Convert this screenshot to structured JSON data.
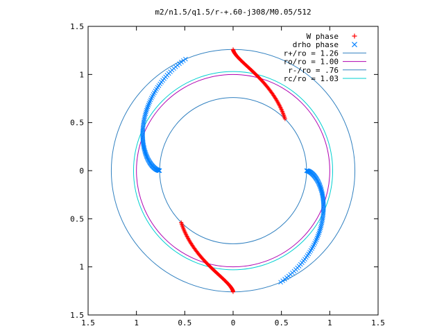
{
  "chart_data": {
    "type": "scatter",
    "title": "m2/n1.5/q1.5/r-+.60-j308/M0.05/512",
    "xlabel": "",
    "ylabel": "",
    "xlim": [
      -1.5,
      1.5
    ],
    "ylim": [
      -1.5,
      1.5
    ],
    "x_ticks": [
      "1.5",
      "1",
      "0.5",
      "0",
      "0.5",
      "1",
      "1.5"
    ],
    "y_ticks": [
      "1.5",
      "1",
      "0.5",
      "0",
      "0.5",
      "1",
      "1.5"
    ],
    "x_tick_values": [
      -1.5,
      -1,
      -0.5,
      0,
      0.5,
      1,
      1.5
    ],
    "y_tick_values": [
      1.5,
      1,
      0.5,
      0,
      -0.5,
      -1,
      -1.5
    ],
    "grid": false,
    "legend_position": "top-right",
    "legend": [
      {
        "label": "W phase",
        "marker": "+",
        "color": "#ff0000"
      },
      {
        "label": "drho phase",
        "marker": "x",
        "color": "#0080ff"
      },
      {
        "label": "r+/ro = 1.26",
        "marker": "line",
        "color": "#3080c0"
      },
      {
        "label": "ro/ro = 1.00",
        "marker": "line",
        "color": "#b000b0"
      },
      {
        "label": "r-/ro = .76",
        "marker": "line",
        "color": "#3080c0"
      },
      {
        "label": "rc/ro = 1.03",
        "marker": "line",
        "color": "#00d0d0"
      }
    ],
    "circles": [
      {
        "r": 1.26,
        "color": "#3080c0"
      },
      {
        "r": 1.0,
        "color": "#b000b0"
      },
      {
        "r": 0.76,
        "color": "#3080c0"
      },
      {
        "r": 1.03,
        "color": "#00d0d0"
      }
    ],
    "series": [
      {
        "name": "W phase",
        "marker": "+",
        "color": "#ff0000",
        "curves": [
          {
            "r0": 1.26,
            "r1": 0.76,
            "theta0": 90,
            "theta1": 45
          },
          {
            "r0": 1.26,
            "r1": 0.76,
            "theta0": 270,
            "theta1": 225
          }
        ]
      },
      {
        "name": "drho phase",
        "marker": "x",
        "color": "#0080ff",
        "curves": [
          {
            "r0": 0.76,
            "r1": 1.26,
            "theta0": 0,
            "theta1": -67
          },
          {
            "r0": 0.76,
            "r1": 1.26,
            "theta0": 180,
            "theta1": 113
          }
        ]
      }
    ]
  }
}
